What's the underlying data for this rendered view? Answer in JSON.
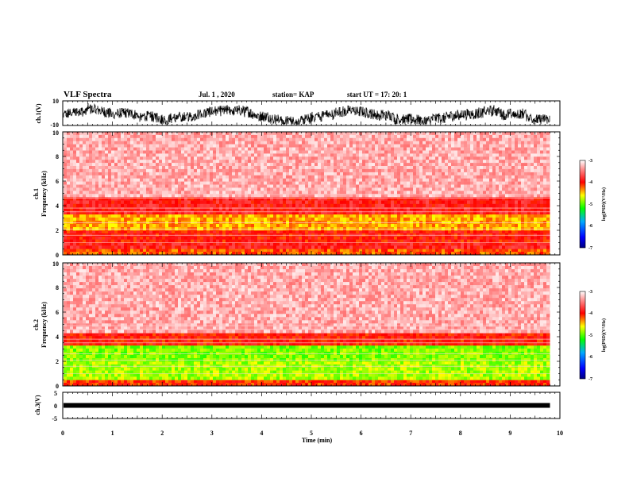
{
  "header": {
    "title": "VLF Spectra",
    "date": "Jul. 1 , 2020",
    "station": "station= KAP",
    "start": "start UT = 17: 20: 1"
  },
  "chart_data": [
    {
      "type": "line",
      "id": "ch1_voltage",
      "ylabel": "ch.1(V)",
      "ylim": [
        -10,
        10
      ],
      "y_ticks": [
        "10",
        "-10"
      ],
      "xlim": [
        0,
        10
      ],
      "data_end_min": 9.8,
      "description_values": {
        "mean": -2,
        "min": -9,
        "max": 8
      }
    },
    {
      "type": "heatmap",
      "id": "ch1_spectrogram",
      "ylabel": "ch.1\nFrequency (kHz)",
      "ylim": [
        0,
        10
      ],
      "y_ticks": [
        "0",
        "2",
        "4",
        "6",
        "8",
        "10"
      ],
      "xlim": [
        0,
        10
      ],
      "data_end_min": 9.8,
      "bands": [
        {
          "from_khz": 0.0,
          "to_khz": 0.5,
          "level": -4.2
        },
        {
          "from_khz": 0.5,
          "to_khz": 1.0,
          "level": -3.9
        },
        {
          "from_khz": 1.0,
          "to_khz": 2.0,
          "level": -4.0
        },
        {
          "from_khz": 2.0,
          "to_khz": 3.3,
          "level": -4.4
        },
        {
          "from_khz": 3.3,
          "to_khz": 4.7,
          "level": -3.9
        },
        {
          "from_khz": 4.7,
          "to_khz": 10.0,
          "level": -3.3
        }
      ],
      "colorbar": {
        "label": "log(PSD)(V²/Hz)",
        "min": -7,
        "max": -3,
        "ticks": [
          "-3",
          "-4",
          "-5",
          "-6",
          "-7"
        ]
      }
    },
    {
      "type": "heatmap",
      "id": "ch2_spectrogram",
      "ylabel": "ch.2\nFrequency (kHz)",
      "ylim": [
        0,
        10
      ],
      "y_ticks": [
        "0",
        "2",
        "4",
        "6",
        "8",
        "10"
      ],
      "xlim": [
        0,
        10
      ],
      "data_end_min": 9.8,
      "bands": [
        {
          "from_khz": 0.0,
          "to_khz": 0.5,
          "level": -4.1
        },
        {
          "from_khz": 0.5,
          "to_khz": 2.0,
          "level": -4.8
        },
        {
          "from_khz": 2.0,
          "to_khz": 3.3,
          "level": -4.9
        },
        {
          "from_khz": 3.3,
          "to_khz": 4.3,
          "level": -4.0
        },
        {
          "from_khz": 4.3,
          "to_khz": 10.0,
          "level": -3.3
        }
      ],
      "colorbar": {
        "label": "log(PSD)(V²/Hz)",
        "min": -7,
        "max": -3,
        "ticks": [
          "-3",
          "-4",
          "-5",
          "-6",
          "-7"
        ]
      }
    },
    {
      "type": "line",
      "id": "ch3_voltage",
      "ylabel": "ch.3(V)",
      "ylim": [
        -5,
        5
      ],
      "y_ticks": [
        "5",
        "0",
        "-5"
      ],
      "xlim": [
        0,
        10
      ],
      "data_end_min": 9.8,
      "level_v": 0
    }
  ],
  "x_axis": {
    "label": "Time (min)",
    "ticks": [
      "0",
      "1",
      "2",
      "3",
      "4",
      "5",
      "6",
      "7",
      "8",
      "9",
      "10"
    ]
  }
}
